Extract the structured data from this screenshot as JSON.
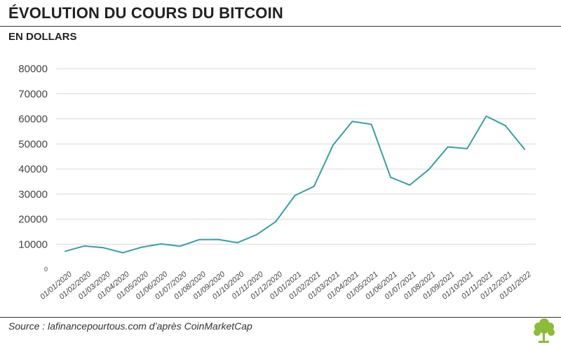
{
  "header": {
    "title": "ÉVOLUTION DU COURS DU BITCOIN",
    "subtitle": "EN DOLLARS"
  },
  "footer": {
    "source": "Source : lafinancepourtous.com d’après CoinMarketCap"
  },
  "colors": {
    "line": "#3a9ea5",
    "grid": "#d9d9d9",
    "logo": "#8dbb3a"
  },
  "chart_data": {
    "type": "line",
    "title": "ÉVOLUTION DU COURS DU BITCOIN",
    "ylabel": "EN DOLLARS",
    "xlabel": "",
    "ylim": [
      0,
      80000
    ],
    "yticks": [
      0,
      10000,
      20000,
      30000,
      40000,
      50000,
      60000,
      70000,
      80000
    ],
    "grid": true,
    "x": [
      "01/01/2020",
      "01/02/2020",
      "01/03/2020",
      "01/04/2020",
      "01/05/2020",
      "01/06/2020",
      "01/07/2020",
      "01/08/2020",
      "01/09/2020",
      "01/10/2020",
      "01/11/2020",
      "01/12/2020",
      "01/01/2021",
      "01/02/2021",
      "01/03/2021",
      "01/04/2021",
      "01/05/2021",
      "01/06/2021",
      "01/07/2021",
      "01/08/2021",
      "01/09/2021",
      "01/10/2021",
      "01/11/2021",
      "01/12/2021",
      "01/01/2022"
    ],
    "series": [
      {
        "values": [
          7200,
          9300,
          8600,
          6600,
          8800,
          10100,
          9200,
          11800,
          11900,
          10600,
          13800,
          19000,
          29400,
          33100,
          49600,
          59000,
          57800,
          36700,
          33600,
          39800,
          48800,
          48100,
          61100,
          57300,
          47900
        ]
      }
    ]
  }
}
